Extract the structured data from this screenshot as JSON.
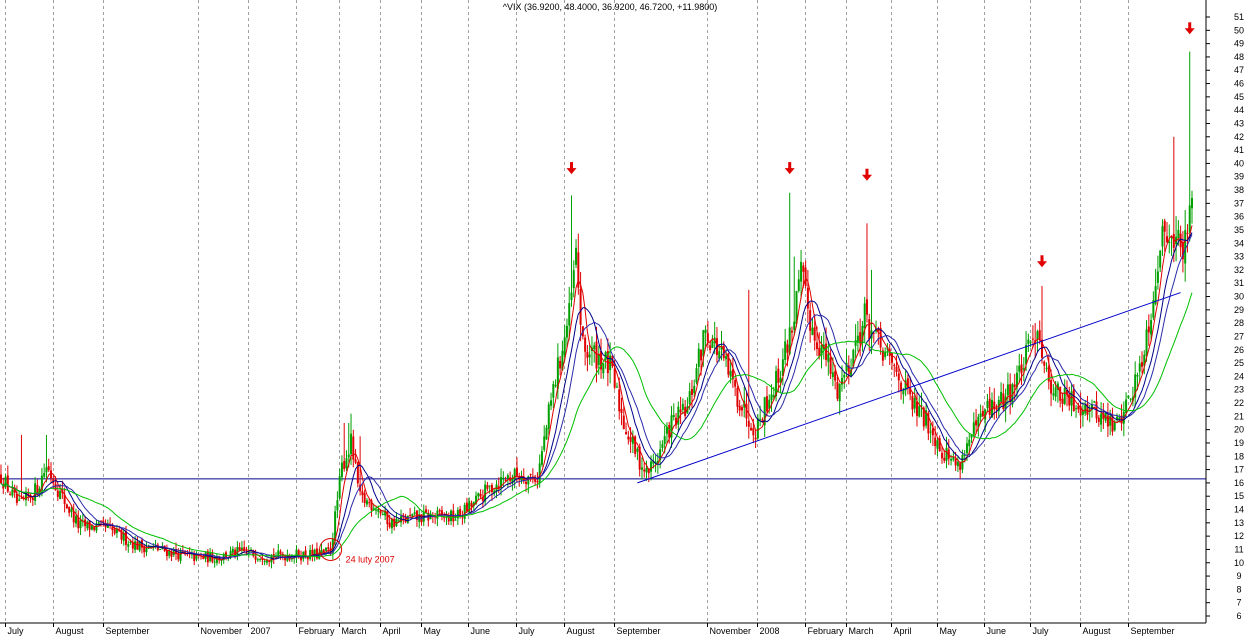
{
  "chart_data": {
    "type": "candlestick",
    "title": "^VIX (36.9200, 48.4000, 36.9200, 46.7200, +11.9800)",
    "xlabel": "",
    "ylabel": "",
    "ylim": [
      6,
      52
    ],
    "y_ticks": [
      6,
      7,
      8,
      9,
      10,
      11,
      12,
      13,
      14,
      15,
      16,
      17,
      18,
      19,
      20,
      21,
      22,
      23,
      24,
      25,
      26,
      27,
      28,
      29,
      30,
      31,
      32,
      33,
      34,
      35,
      36,
      37,
      38,
      39,
      40,
      41,
      42,
      43,
      44,
      45,
      46,
      47,
      48,
      49,
      50,
      51
    ],
    "x_index_range": [
      0,
      590
    ],
    "month_labels": [
      {
        "label": "July",
        "idx": 3
      },
      {
        "label": "August",
        "idx": 24
      },
      {
        "label": "September",
        "idx": 46
      },
      {
        "label": "November",
        "idx": 88
      },
      {
        "label": "2007",
        "idx": 110
      },
      {
        "label": "February",
        "idx": 131
      },
      {
        "label": "March",
        "idx": 150
      },
      {
        "label": "April",
        "idx": 168
      },
      {
        "label": "May",
        "idx": 186
      },
      {
        "label": "June",
        "idx": 207
      },
      {
        "label": "July",
        "idx": 228
      },
      {
        "label": "August",
        "idx": 249
      },
      {
        "label": "September",
        "idx": 271
      },
      {
        "label": "November",
        "idx": 312
      },
      {
        "label": "2008",
        "idx": 334
      },
      {
        "label": "February",
        "idx": 355
      },
      {
        "label": "March",
        "idx": 373
      },
      {
        "label": "April",
        "idx": 393
      },
      {
        "label": "May",
        "idx": 413
      },
      {
        "label": "June",
        "idx": 434
      },
      {
        "label": "July",
        "idx": 454
      },
      {
        "label": "August",
        "idx": 476
      },
      {
        "label": "September",
        "idx": 497
      }
    ],
    "anchors": [
      [
        0,
        16.5
      ],
      [
        8,
        14.2
      ],
      [
        16,
        15.6
      ],
      [
        20,
        17.3
      ],
      [
        26,
        15.2
      ],
      [
        34,
        12.8
      ],
      [
        46,
        12.6
      ],
      [
        60,
        11.3
      ],
      [
        70,
        11.0
      ],
      [
        84,
        10.4
      ],
      [
        95,
        10.4
      ],
      [
        105,
        10.8
      ],
      [
        118,
        10.5
      ],
      [
        130,
        10.6
      ],
      [
        140,
        10.6
      ],
      [
        145,
        10.9
      ],
      [
        150,
        17.2
      ],
      [
        154,
        19.0
      ],
      [
        158,
        14.8
      ],
      [
        165,
        14.3
      ],
      [
        171,
        13.0
      ],
      [
        180,
        13.3
      ],
      [
        190,
        13.5
      ],
      [
        200,
        13.4
      ],
      [
        207,
        14.3
      ],
      [
        215,
        15.6
      ],
      [
        222,
        16.4
      ],
      [
        228,
        16.6
      ],
      [
        236,
        16.4
      ],
      [
        243,
        23.0
      ],
      [
        250,
        28.5
      ],
      [
        253,
        33.0
      ],
      [
        256,
        26.0
      ],
      [
        263,
        25.5
      ],
      [
        268,
        24.6
      ],
      [
        274,
        20.5
      ],
      [
        280,
        18.0
      ],
      [
        284,
        16.7
      ],
      [
        289,
        18.0
      ],
      [
        295,
        20.5
      ],
      [
        302,
        21.5
      ],
      [
        310,
        27.5
      ],
      [
        317,
        25.5
      ],
      [
        324,
        22.5
      ],
      [
        332,
        20.0
      ],
      [
        336,
        21.8
      ],
      [
        342,
        24.0
      ],
      [
        348,
        27.8
      ],
      [
        352,
        31.5
      ],
      [
        357,
        27.5
      ],
      [
        362,
        25.8
      ],
      [
        368,
        23.0
      ],
      [
        374,
        25.5
      ],
      [
        380,
        28.5
      ],
      [
        384,
        27.0
      ],
      [
        388,
        25.8
      ],
      [
        395,
        24.0
      ],
      [
        401,
        21.8
      ],
      [
        408,
        20.5
      ],
      [
        414,
        18.5
      ],
      [
        421,
        17.3
      ],
      [
        427,
        19.5
      ],
      [
        434,
        21.5
      ],
      [
        440,
        22.0
      ],
      [
        446,
        23.5
      ],
      [
        452,
        25.8
      ],
      [
        456,
        28.0
      ],
      [
        460,
        24.0
      ],
      [
        466,
        22.5
      ],
      [
        472,
        22.0
      ],
      [
        478,
        21.8
      ],
      [
        484,
        21.0
      ],
      [
        490,
        20.2
      ],
      [
        495,
        21.8
      ],
      [
        500,
        24.0
      ],
      [
        505,
        28.0
      ],
      [
        510,
        34.0
      ],
      [
        515,
        35.5
      ],
      [
        520,
        33.0
      ],
      [
        524,
        38.0
      ]
    ],
    "spikes": [
      [
        9,
        19.6
      ],
      [
        20,
        19.6
      ],
      [
        151,
        20.5
      ],
      [
        153,
        20.5
      ],
      [
        154,
        21.2
      ],
      [
        158,
        19.5
      ],
      [
        251,
        37.6
      ],
      [
        253,
        32.5
      ],
      [
        329,
        30.5
      ],
      [
        347,
        37.8
      ],
      [
        349,
        33.0
      ],
      [
        381,
        35.5
      ],
      [
        383,
        32.0
      ],
      [
        458,
        30.8
      ],
      [
        516,
        42.0
      ],
      [
        521,
        36.5
      ],
      [
        523,
        48.4
      ]
    ],
    "series": [
      {
        "color": "#e00000",
        "period": 5
      },
      {
        "color": "#000088",
        "period": 10
      },
      {
        "color": "#2a2aaa",
        "period": 15
      },
      {
        "color": "#00c000",
        "period": 30
      }
    ],
    "horizontal_line": {
      "y": 16.3,
      "color": "#00008b"
    },
    "trend_line": {
      "from": [
        280,
        16.0
      ],
      "to": [
        519,
        30.3
      ],
      "color": "#0000cc"
    },
    "arrows": [
      {
        "idx": 251,
        "y": 39.5
      },
      {
        "idx": 347,
        "y": 39.5
      },
      {
        "idx": 381,
        "y": 39.0
      },
      {
        "idx": 458,
        "y": 32.5
      },
      {
        "idx": 523,
        "y": 50.0
      }
    ],
    "annotation": {
      "text": "24 luty 2007",
      "circle_idx": 145,
      "circle_y": 11.0
    },
    "colors": {
      "up": "#00a000",
      "down": "#e00000",
      "grid": "#a0a0a0"
    }
  }
}
